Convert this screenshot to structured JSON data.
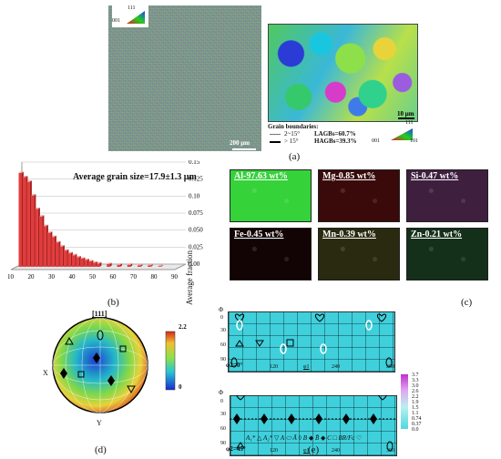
{
  "panel_a": {
    "label": "(a)",
    "ipf_key_top": "111",
    "ipf_key_left": "001",
    "ipf_key_right": "101",
    "scale_left": "200 μm",
    "scale_right": "10 μm",
    "gb_title": "Grain boundaries:",
    "gb_low_range": "2~15°",
    "gb_low_value": "LAGBs=60.7%",
    "gb_high_range": "> 15°",
    "gb_high_value": "HAGBs=39.3%"
  },
  "panel_b": {
    "label": "(b)",
    "annotation": "Average grain size=17.9±1.3 μm",
    "ylabel": "Average fraction"
  },
  "chart_data": {
    "type": "bar",
    "title": "",
    "annotation": "Average grain size=17.9±1.3 μm",
    "xlabel": "",
    "ylabel": "Average fraction",
    "x_ticks": [
      "10",
      "20",
      "30",
      "40",
      "50",
      "60",
      "70",
      "80",
      "90"
    ],
    "y_ticks": [
      "0.00",
      "0.025",
      "0.050",
      "0.075",
      "0.10",
      "0.125",
      "0.15"
    ],
    "ylim": [
      0,
      0.15
    ],
    "x": [
      12,
      14,
      16,
      18,
      20,
      22,
      24,
      26,
      28,
      30,
      32,
      34,
      36,
      38,
      40,
      42,
      44,
      46,
      48,
      50,
      55,
      60,
      65,
      70,
      75,
      80
    ],
    "values": [
      0.138,
      0.132,
      0.125,
      0.105,
      0.085,
      0.074,
      0.06,
      0.05,
      0.044,
      0.036,
      0.03,
      0.024,
      0.02,
      0.017,
      0.014,
      0.012,
      0.01,
      0.008,
      0.006,
      0.005,
      0.004,
      0.003,
      0.003,
      0.002,
      0.002,
      0.001
    ],
    "grid": true
  },
  "panel_c": {
    "label": "(c)",
    "maps": [
      {
        "text": "Al-97.63 wt%",
        "color": "#35d23a"
      },
      {
        "text": "Mg-0.85 wt%",
        "color": "#3a0a0a"
      },
      {
        "text": "Si-0.47 wt%",
        "color": "#3e1f3e"
      },
      {
        "text": "Fe-0.45 wt%",
        "color": "#120404"
      },
      {
        "text": "Mn-0.39 wt%",
        "color": "#2a2a10"
      },
      {
        "text": "Zn-0.21 wt%",
        "color": "#14301a"
      }
    ]
  },
  "panel_d": {
    "label": "(d)",
    "pole_top": "[111]",
    "axis_x": "X",
    "axis_y": "Y",
    "scale_max": "2.2",
    "scale_min": "0"
  },
  "panel_e": {
    "label": "(e)",
    "phi1_label": "φ1",
    "phi_label": "Φ",
    "section1": "φ2=0°",
    "section2": "φ2=45°",
    "phi1_ticks": [
      "120",
      "240",
      "360"
    ],
    "phi_ticks": [
      "0",
      "30",
      "60",
      "90"
    ],
    "colorbar": [
      "3.7",
      "3.3",
      "3.0",
      "2.6",
      "2.2",
      "1.9",
      "1.5",
      "1.1",
      "0.74",
      "0.37",
      "0.0"
    ],
    "legend": "A₁* △  A₂* ▽  A ⬭  Ā ◊  B ◆  B̄ ◆  C □  BR/Fc ♡"
  }
}
